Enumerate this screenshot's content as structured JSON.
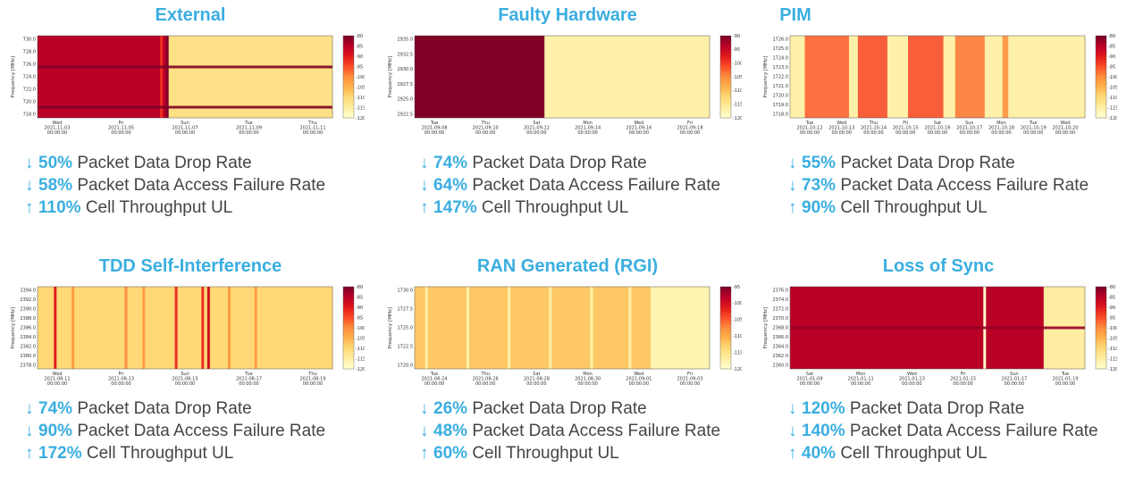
{
  "colors": {
    "title": "#3aaee0",
    "arrow": "#3aaee0",
    "metric_text": "#454545",
    "colormap": [
      "#800026",
      "#bd0026",
      "#e31a1c",
      "#fc4e2a",
      "#fd8d3c",
      "#feb24c",
      "#fed976",
      "#ffeda0",
      "#ffffcc"
    ]
  },
  "panels": [
    {
      "title": "External",
      "metrics": [
        {
          "arrow": "↓",
          "pct": "50%",
          "label": "Packet Data Drop Rate"
        },
        {
          "arrow": "↓",
          "pct": "58%",
          "label": "Packet Data Access Failure Rate"
        },
        {
          "arrow": "↑",
          "pct": "110%",
          "label": "Cell Throughput UL"
        }
      ],
      "chart_data": {
        "type": "heatmap",
        "ylabel": "Frequency [MHz]",
        "yticks": [
          "730.0",
          "728.0",
          "726.0",
          "724.0",
          "722.0",
          "720.0",
          "718.0"
        ],
        "xticks": [
          {
            "day": "Wed",
            "date": "2021-11-03",
            "time": "00:00:00"
          },
          {
            "day": "Fri",
            "date": "2021-11-05",
            "time": "00:00:00"
          },
          {
            "day": "Sun",
            "date": "2021-11-07",
            "time": "00:00:00"
          },
          {
            "day": "Tue",
            "date": "2021-11-09",
            "time": "00:00:00"
          },
          {
            "day": "Thu",
            "date": "2021-11-11",
            "time": "00:00:00"
          }
        ],
        "colorbar": {
          "min": -120,
          "max": -80,
          "ticks": [
            "-80",
            "-85",
            "-90",
            "-95",
            "-100",
            "-105",
            "-110",
            "-115",
            "-120"
          ]
        },
        "regions": [
          {
            "from": 0.0,
            "to": 0.44,
            "level": 0.88
          },
          {
            "from": 0.44,
            "to": 1.0,
            "level": 0.2
          }
        ],
        "hbands": [
          {
            "at": 0.38,
            "level": 1.0
          },
          {
            "at": 0.87,
            "level": 1.0
          }
        ],
        "vbands": [
          {
            "at": 0.44,
            "level": 1.0
          },
          {
            "at": 0.42,
            "level": 0.7
          }
        ]
      }
    },
    {
      "title": "Faulty Hardware",
      "metrics": [
        {
          "arrow": "↓",
          "pct": "74%",
          "label": "Packet Data Drop Rate"
        },
        {
          "arrow": "↓",
          "pct": "64%",
          "label": "Packet Data Access Failure Rate"
        },
        {
          "arrow": "↑",
          "pct": "147%",
          "label": "Cell Throughput UL"
        }
      ],
      "chart_data": {
        "type": "heatmap",
        "ylabel": "Frequency [MHz]",
        "yticks": [
          "2935.0",
          "2932.5",
          "2930.0",
          "2927.5",
          "2925.0",
          "2922.5"
        ],
        "xticks": [
          {
            "day": "Tue",
            "date": "2021-09-08",
            "time": "00:00:00"
          },
          {
            "day": "Thu",
            "date": "2021-09-10",
            "time": "00:00:00"
          },
          {
            "day": "Sat",
            "date": "2021-09-12",
            "time": "00:00:00"
          },
          {
            "day": "Mon",
            "date": "2021-09-14",
            "time": "00:00:00"
          },
          {
            "day": "Wed",
            "date": "2021-09-16",
            "time": "00:00:00"
          },
          {
            "day": "Fri",
            "date": "2021-09-18",
            "time": "00:00:00"
          }
        ],
        "colorbar": {
          "min": -120,
          "max": -90,
          "ticks": [
            "-90",
            "-95",
            "-100",
            "-105",
            "-110",
            "-115",
            "-120"
          ]
        },
        "regions": [
          {
            "from": 0.0,
            "to": 0.44,
            "level": 1.0
          },
          {
            "from": 0.44,
            "to": 1.0,
            "level": 0.1
          }
        ],
        "hbands": [],
        "vbands": []
      }
    },
    {
      "title": "PIM",
      "metrics": [
        {
          "arrow": "↓",
          "pct": "55%",
          "label": "Packet Data Drop Rate"
        },
        {
          "arrow": "↓",
          "pct": "73%",
          "label": "Packet Data Access Failure Rate"
        },
        {
          "arrow": "↑",
          "pct": "90%",
          "label": "Cell Throughput UL"
        }
      ],
      "chart_data": {
        "type": "heatmap",
        "ylabel": "Frequency [MHz]",
        "yticks": [
          "1726.0",
          "1725.0",
          "1724.0",
          "1723.0",
          "1722.0",
          "1721.0",
          "1720.0",
          "1719.0",
          "1718.0"
        ],
        "xticks": [
          {
            "day": "Tue",
            "date": "2021-10-12",
            "time": "00:00:00"
          },
          {
            "day": "Wed",
            "date": "2021-10-13",
            "time": "00:00:00"
          },
          {
            "day": "Thu",
            "date": "2021-10-14",
            "time": "00:00:00"
          },
          {
            "day": "Fri",
            "date": "2021-10-15",
            "time": "00:00:00"
          },
          {
            "day": "Sat",
            "date": "2021-10-16",
            "time": "00:00:00"
          },
          {
            "day": "Sun",
            "date": "2021-10-17",
            "time": "00:00:00"
          },
          {
            "day": "Mon",
            "date": "2021-10-18",
            "time": "00:00:00"
          },
          {
            "day": "Tue",
            "date": "2021-10-19",
            "time": "00:00:00"
          },
          {
            "day": "Wed",
            "date": "2021-10-20",
            "time": "00:00:00"
          }
        ],
        "colorbar": {
          "min": -120,
          "max": -80,
          "ticks": [
            "-80",
            "-85",
            "-90",
            "-95",
            "-100",
            "-105",
            "-110",
            "-115",
            "-120"
          ]
        },
        "regions": [
          {
            "from": 0.0,
            "to": 1.0,
            "level": 0.1
          }
        ],
        "hbands": [],
        "vbands": [
          {
            "from": 0.05,
            "to": 0.2,
            "level": 0.6
          },
          {
            "from": 0.23,
            "to": 0.33,
            "level": 0.65
          },
          {
            "from": 0.4,
            "to": 0.52,
            "level": 0.65
          },
          {
            "from": 0.56,
            "to": 0.66,
            "level": 0.55
          },
          {
            "from": 0.72,
            "to": 0.74,
            "level": 0.5
          }
        ]
      }
    },
    {
      "title": "TDD Self-Interference",
      "metrics": [
        {
          "arrow": "↓",
          "pct": "74%",
          "label": "Packet Data Drop Rate"
        },
        {
          "arrow": "↓",
          "pct": "90%",
          "label": "Packet Data Access Failure Rate"
        },
        {
          "arrow": "↑",
          "pct": "172%",
          "label": "Cell Throughput UL"
        }
      ],
      "chart_data": {
        "type": "heatmap",
        "ylabel": "Frequency [MHz]",
        "yticks": [
          "2394.0",
          "2392.0",
          "2390.0",
          "2388.0",
          "2386.0",
          "2384.0",
          "2382.0",
          "2380.0",
          "2378.0"
        ],
        "xticks": [
          {
            "day": "Wed",
            "date": "2021-08-11",
            "time": "00:00:00"
          },
          {
            "day": "Fri",
            "date": "2021-08-13",
            "time": "00:00:00"
          },
          {
            "day": "Sun",
            "date": "2021-08-15",
            "time": "00:00:00"
          },
          {
            "day": "Tue",
            "date": "2021-08-17",
            "time": "00:00:00"
          },
          {
            "day": "Thu",
            "date": "2021-08-19",
            "time": "00:00:00"
          }
        ],
        "colorbar": {
          "min": -120,
          "max": -80,
          "ticks": [
            "-80",
            "-85",
            "-90",
            "-95",
            "-100",
            "-105",
            "-110",
            "-115",
            "-120"
          ]
        },
        "regions": [
          {
            "from": 0.0,
            "to": 1.0,
            "level": 0.25
          }
        ],
        "hbands": [],
        "vbands": [
          {
            "at": 0.06,
            "level": 0.75
          },
          {
            "at": 0.12,
            "level": 0.45
          },
          {
            "at": 0.3,
            "level": 0.5
          },
          {
            "at": 0.36,
            "level": 0.45
          },
          {
            "at": 0.47,
            "level": 0.7
          },
          {
            "at": 0.56,
            "level": 0.7
          },
          {
            "at": 0.58,
            "level": 0.8
          },
          {
            "at": 0.65,
            "level": 0.45
          },
          {
            "at": 0.74,
            "level": 0.45
          }
        ]
      }
    },
    {
      "title": "RAN Generated (RGI)",
      "metrics": [
        {
          "arrow": "↓",
          "pct": "26%",
          "label": "Packet Data Drop Rate"
        },
        {
          "arrow": "↓",
          "pct": "48%",
          "label": "Packet Data Access Failure Rate"
        },
        {
          "arrow": "↑",
          "pct": "60%",
          "label": "Cell Throughput UL"
        }
      ],
      "chart_data": {
        "type": "heatmap",
        "ylabel": "Frequency [MHz]",
        "yticks": [
          "1730.0",
          "1727.5",
          "1725.0",
          "1722.5",
          "1720.0"
        ],
        "xticks": [
          {
            "day": "Tue",
            "date": "2021-08-24",
            "time": "00:00:00"
          },
          {
            "day": "Thu",
            "date": "2021-08-26",
            "time": "00:00:00"
          },
          {
            "day": "Sat",
            "date": "2021-08-28",
            "time": "00:00:00"
          },
          {
            "day": "Mon",
            "date": "2021-08-30",
            "time": "00:00:00"
          },
          {
            "day": "Wed",
            "date": "2021-09-01",
            "time": "00:00:00"
          },
          {
            "day": "Fri",
            "date": "2021-09-03",
            "time": "00:00:00"
          }
        ],
        "colorbar": {
          "min": -120,
          "max": -95,
          "ticks": [
            "-95",
            "-100",
            "-105",
            "-110",
            "-115",
            "-120"
          ]
        },
        "regions": [
          {
            "from": 0.0,
            "to": 0.8,
            "level": 0.3
          },
          {
            "from": 0.8,
            "to": 1.0,
            "level": 0.08
          }
        ],
        "hbands": [],
        "vbands": [
          {
            "at": 0.04,
            "level": 0.1
          },
          {
            "at": 0.18,
            "level": 0.1
          },
          {
            "at": 0.32,
            "level": 0.1
          },
          {
            "at": 0.46,
            "level": 0.1
          },
          {
            "at": 0.6,
            "level": 0.1
          },
          {
            "at": 0.73,
            "level": 0.1
          }
        ]
      }
    },
    {
      "title": "Loss of Sync",
      "metrics": [
        {
          "arrow": "↓",
          "pct": "120%",
          "label": "Packet Data Drop Rate"
        },
        {
          "arrow": "↓",
          "pct": "140%",
          "label": "Packet Data Access Failure Rate"
        },
        {
          "arrow": "↑",
          "pct": "40%",
          "label": "Cell Throughput UL"
        }
      ],
      "chart_data": {
        "type": "heatmap",
        "ylabel": "Frequency [MHz]",
        "yticks": [
          "2376.0",
          "2374.0",
          "2372.0",
          "2370.0",
          "2368.0",
          "2366.0",
          "2364.0",
          "2362.0",
          "2360.0"
        ],
        "xticks": [
          {
            "day": "Sat",
            "date": "2021-01-09",
            "time": "00:00:00"
          },
          {
            "day": "Mon",
            "date": "2021-01-11",
            "time": "00:00:00"
          },
          {
            "day": "Wed",
            "date": "2021-01-13",
            "time": "00:00:00"
          },
          {
            "day": "Fri",
            "date": "2021-01-15",
            "time": "00:00:00"
          },
          {
            "day": "Sun",
            "date": "2021-01-17",
            "time": "00:00:00"
          },
          {
            "day": "Tue",
            "date": "2021-01-19",
            "time": "00:00:00"
          }
        ],
        "colorbar": {
          "min": -120,
          "max": -80,
          "ticks": [
            "-80",
            "-85",
            "-90",
            "-95",
            "-100",
            "-105",
            "-110",
            "-115",
            "-120"
          ]
        },
        "regions": [
          {
            "from": 0.0,
            "to": 0.86,
            "level": 0.88
          },
          {
            "from": 0.86,
            "to": 1.0,
            "level": 0.12
          }
        ],
        "hbands": [
          {
            "at": 0.5,
            "level": 0.95
          }
        ],
        "vbands": [
          {
            "at": 0.66,
            "level": 0.0
          }
        ]
      }
    }
  ]
}
